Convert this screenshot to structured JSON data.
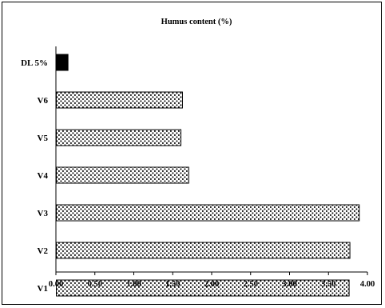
{
  "chart_data": {
    "type": "bar",
    "orientation": "horizontal",
    "title": "Humus content (%)",
    "xlabel": "",
    "ylabel": "",
    "categories": [
      "DL 5%",
      "V6",
      "V5",
      "V4",
      "V3",
      "V2",
      "V1"
    ],
    "values": [
      0.15,
      1.62,
      1.6,
      1.7,
      3.89,
      3.77,
      3.76
    ],
    "bar_styles": [
      "solid",
      "dotted",
      "dotted",
      "dotted",
      "dotted",
      "dotted",
      "dotted"
    ],
    "xlim": [
      0,
      4.0
    ],
    "xticks": [
      "0.00",
      "0.50",
      "1.00",
      "1.50",
      "2.00",
      "2.50",
      "3.00",
      "3.50",
      "4.00"
    ],
    "grid": false,
    "legend": "none",
    "colors": {
      "bar_fill": "#ffffff",
      "dot": "#000000",
      "solid": "#000000"
    }
  }
}
